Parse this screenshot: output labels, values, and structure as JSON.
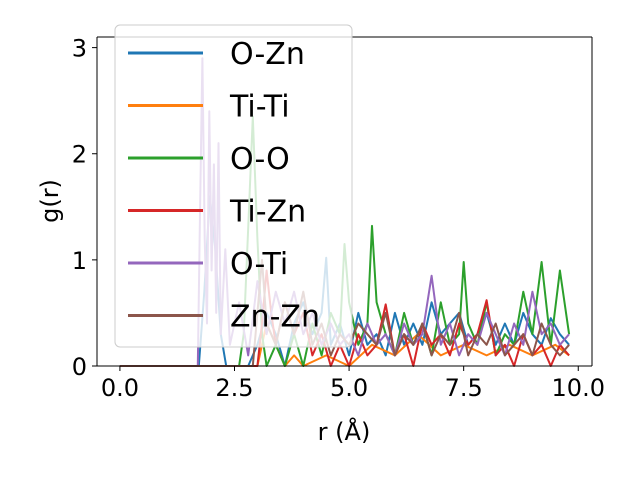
{
  "chart_data": {
    "type": "line",
    "xlabel": "r (Å)",
    "ylabel": "g(r)",
    "xlim": [
      -0.5,
      10.3
    ],
    "ylim": [
      0,
      3.1
    ],
    "xticks": [
      0.0,
      2.5,
      5.0,
      7.5,
      10.0
    ],
    "xtick_labels": [
      "0.0",
      "2.5",
      "5.0",
      "7.5",
      "10.0"
    ],
    "yticks": [
      0,
      1,
      2,
      3
    ],
    "ytick_labels": [
      "0",
      "1",
      "2",
      "3"
    ],
    "grid": false,
    "legend_position": "top-left",
    "series": [
      {
        "name": "O-Zn",
        "color": "#1f77b4",
        "x": [
          0.0,
          1.6,
          1.72,
          1.84,
          1.96,
          2.08,
          2.2,
          2.32,
          2.44,
          2.56,
          2.68,
          2.8,
          3.0,
          3.2,
          3.4,
          3.6,
          3.8,
          4.0,
          4.2,
          4.4,
          4.5,
          4.6,
          4.8,
          5.0,
          5.2,
          5.4,
          5.6,
          5.8,
          6.0,
          6.2,
          6.4,
          6.6,
          6.8,
          7.0,
          7.2,
          7.4,
          7.6,
          7.8,
          8.0,
          8.2,
          8.4,
          8.6,
          8.8,
          9.0,
          9.2,
          9.4,
          9.6,
          9.8
        ],
        "y": [
          0.0,
          0.0,
          0.0,
          0.7,
          1.6,
          1.1,
          0.3,
          0.0,
          0.0,
          0.0,
          0.0,
          0.0,
          0.2,
          0.5,
          0.3,
          0.0,
          0.4,
          0.6,
          0.3,
          0.5,
          1.02,
          0.2,
          0.4,
          0.1,
          0.5,
          0.2,
          0.3,
          0.1,
          0.5,
          0.2,
          0.4,
          0.2,
          0.6,
          0.3,
          0.4,
          0.5,
          0.2,
          0.3,
          0.5,
          0.2,
          0.4,
          0.2,
          0.5,
          0.3,
          0.2,
          0.45,
          0.3,
          0.2
        ]
      },
      {
        "name": "Ti-Ti",
        "color": "#ff7f0e",
        "x": [
          0.0,
          2.5,
          3.0,
          3.2,
          3.4,
          3.6,
          3.8,
          4.0,
          4.5,
          5.0,
          5.5,
          6.0,
          6.5,
          7.0,
          7.5,
          8.0,
          8.5,
          9.0,
          9.5,
          9.8
        ],
        "y": [
          0.0,
          0.0,
          0.0,
          0.4,
          0.2,
          0.0,
          0.1,
          0.0,
          0.1,
          0.0,
          0.2,
          0.1,
          0.3,
          0.1,
          0.2,
          0.1,
          0.2,
          0.1,
          0.2,
          0.1
        ]
      },
      {
        "name": "O-O",
        "color": "#2ca02c",
        "x": [
          0.0,
          2.6,
          2.7,
          2.8,
          2.9,
          3.0,
          3.1,
          3.2,
          3.4,
          3.6,
          3.8,
          4.0,
          4.2,
          4.4,
          4.6,
          4.8,
          4.9,
          5.0,
          5.2,
          5.4,
          5.5,
          5.6,
          5.8,
          6.0,
          6.2,
          6.4,
          6.6,
          6.8,
          7.0,
          7.2,
          7.4,
          7.5,
          7.6,
          7.8,
          8.0,
          8.2,
          8.4,
          8.6,
          8.8,
          9.0,
          9.2,
          9.4,
          9.6,
          9.8
        ],
        "y": [
          0.0,
          0.0,
          0.3,
          1.3,
          2.35,
          1.2,
          0.3,
          0.0,
          0.2,
          0.0,
          0.3,
          0.0,
          0.4,
          0.1,
          0.5,
          0.3,
          1.15,
          0.6,
          0.2,
          0.4,
          1.32,
          0.6,
          0.3,
          0.1,
          0.5,
          0.2,
          0.4,
          0.1,
          0.6,
          0.2,
          0.3,
          0.98,
          0.4,
          0.2,
          0.6,
          0.1,
          0.3,
          0.2,
          0.7,
          0.3,
          0.98,
          0.2,
          0.9,
          0.3
        ]
      },
      {
        "name": "Ti-Zn",
        "color": "#d62728",
        "x": [
          0.0,
          3.0,
          3.1,
          3.2,
          3.3,
          3.4,
          3.6,
          3.8,
          4.0,
          4.2,
          4.4,
          4.6,
          4.8,
          5.0,
          5.2,
          5.4,
          5.6,
          5.8,
          6.0,
          6.2,
          6.4,
          6.6,
          6.8,
          7.0,
          7.2,
          7.4,
          7.6,
          7.8,
          8.0,
          8.2,
          8.4,
          8.6,
          8.8,
          9.0,
          9.2,
          9.4,
          9.6,
          9.8
        ],
        "y": [
          0.0,
          0.0,
          0.4,
          0.9,
          0.5,
          0.2,
          0.6,
          0.3,
          0.5,
          0.1,
          0.3,
          0.0,
          0.2,
          0.0,
          0.3,
          0.1,
          0.2,
          0.58,
          0.1,
          0.3,
          0.0,
          0.4,
          0.2,
          0.3,
          0.1,
          0.4,
          0.2,
          0.3,
          0.62,
          0.1,
          0.2,
          0.0,
          0.3,
          0.1,
          0.2,
          0.0,
          0.2,
          0.1
        ]
      },
      {
        "name": "O-Ti",
        "color": "#9467bd",
        "x": [
          0.0,
          1.7,
          1.75,
          1.8,
          1.85,
          1.9,
          1.95,
          2.0,
          2.05,
          2.1,
          2.15,
          2.2,
          2.3,
          2.4,
          2.6,
          2.8,
          3.0,
          3.2,
          3.4,
          3.6,
          3.8,
          4.0,
          4.2,
          4.4,
          4.6,
          4.8,
          5.0,
          5.2,
          5.4,
          5.6,
          5.8,
          6.0,
          6.2,
          6.4,
          6.6,
          6.8,
          7.0,
          7.2,
          7.4,
          7.6,
          7.8,
          8.0,
          8.2,
          8.4,
          8.6,
          8.8,
          9.0,
          9.2,
          9.4,
          9.6,
          9.8
        ],
        "y": [
          0.0,
          0.0,
          1.5,
          2.9,
          1.2,
          0.4,
          2.4,
          0.9,
          1.9,
          0.5,
          2.1,
          0.3,
          1.1,
          0.2,
          0.6,
          0.1,
          0.8,
          0.3,
          0.7,
          0.4,
          0.7,
          0.3,
          0.5,
          0.2,
          0.4,
          0.2,
          0.3,
          0.1,
          0.4,
          0.2,
          0.3,
          0.1,
          0.4,
          0.2,
          0.3,
          0.85,
          0.2,
          0.4,
          0.1,
          0.3,
          0.2,
          0.5,
          0.3,
          0.1,
          0.4,
          0.2,
          0.7,
          0.3,
          0.4,
          0.2,
          0.3
        ]
      },
      {
        "name": "Zn-Zn",
        "color": "#8c564b",
        "x": [
          0.0,
          2.9,
          3.0,
          3.1,
          3.2,
          3.4,
          3.6,
          3.8,
          4.0,
          4.2,
          4.4,
          4.6,
          4.8,
          5.0,
          5.2,
          5.4,
          5.6,
          5.8,
          6.0,
          6.2,
          6.4,
          6.6,
          6.8,
          7.0,
          7.2,
          7.4,
          7.6,
          7.8,
          8.0,
          8.2,
          8.4,
          8.6,
          8.8,
          9.0,
          9.2,
          9.4,
          9.6,
          9.8
        ],
        "y": [
          0.0,
          0.0,
          0.5,
          1.0,
          0.4,
          0.2,
          0.6,
          0.3,
          0.7,
          0.2,
          0.4,
          0.1,
          0.3,
          0.2,
          0.4,
          0.3,
          0.2,
          0.5,
          0.1,
          0.3,
          0.2,
          0.4,
          0.1,
          0.3,
          0.2,
          0.5,
          0.1,
          0.3,
          0.2,
          0.4,
          0.1,
          0.2,
          0.3,
          0.1,
          0.4,
          0.2,
          0.1,
          0.2
        ]
      }
    ]
  }
}
